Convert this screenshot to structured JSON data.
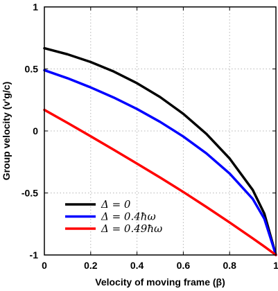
{
  "chart_data": {
    "type": "line",
    "title": "",
    "xlabel": "Velocity of moving frame (β)",
    "ylabel": "Group velocity (v'g/c)",
    "xlim": [
      0,
      1
    ],
    "ylim": [
      -1,
      1
    ],
    "xticks": [
      0,
      0.2,
      0.4,
      0.6,
      0.8,
      1
    ],
    "xtick_labels": [
      "0",
      "0.2",
      "0.4",
      "0.6",
      "0.8",
      "1"
    ],
    "yticks": [
      -1,
      -0.5,
      0,
      0.5,
      1
    ],
    "ytick_labels": [
      "-1",
      "-0.5",
      "0",
      "0.5",
      "1"
    ],
    "grid": true,
    "legend_position": "bottom-left",
    "series": [
      {
        "name": "Δ = 0",
        "color": "#000000",
        "x": [
          0,
          0.1,
          0.2,
          0.3,
          0.4,
          0.5,
          0.6,
          0.7,
          0.8,
          0.9,
          0.95,
          1
        ],
        "y": [
          0.667,
          0.618,
          0.556,
          0.479,
          0.385,
          0.273,
          0.138,
          -0.024,
          -0.222,
          -0.476,
          -0.667,
          -1
        ]
      },
      {
        "name": "Δ = 0.4ħω",
        "color": "#0000ff",
        "x": [
          0,
          0.1,
          0.2,
          0.3,
          0.4,
          0.5,
          0.6,
          0.7,
          0.8,
          0.9,
          0.95,
          1
        ],
        "y": [
          0.49,
          0.425,
          0.351,
          0.269,
          0.177,
          0.073,
          -0.045,
          -0.181,
          -0.343,
          -0.548,
          -0.708,
          -1
        ]
      },
      {
        "name": "Δ = 0.49ħω",
        "color": "#ff0000",
        "x": [
          0,
          0.1,
          0.2,
          0.3,
          0.4,
          0.5,
          0.6,
          0.7,
          0.8,
          0.9,
          0.95,
          1
        ],
        "y": [
          0.17,
          0.065,
          -0.043,
          -0.152,
          -0.263,
          -0.376,
          -0.492,
          -0.613,
          -0.738,
          -0.866,
          -0.932,
          -1
        ]
      }
    ]
  }
}
